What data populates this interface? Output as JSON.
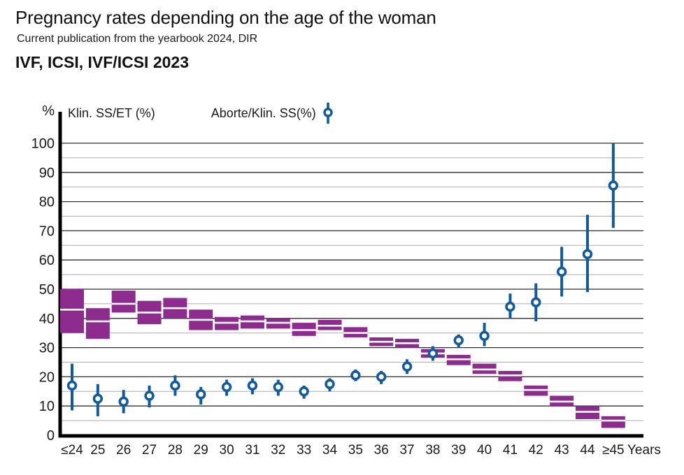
{
  "header": {
    "title": "Pregnancy rates depending on the age of the woman",
    "subtitle": "Current publication from the yearbook 2024, DIR",
    "section_title": "IVF, ICSI, IVF/ICSI 2023"
  },
  "colors": {
    "pregnancy_bar": "#8e2b8e",
    "abortion_marker": "#115a9e",
    "gridline_major": "#2f2f2f",
    "gridline_minor": "#adadad",
    "axis": "#000000",
    "text": "#1a1a1a"
  },
  "chart_data": {
    "type": "bar",
    "subtype": "floating-range-bars-with-mean-line-plus-point-estimates-with-confidence-intervals",
    "title": "IVF, ICSI, IVF/ICSI 2023",
    "xlabel": "Years",
    "ylabel": "%",
    "ylim": [
      0,
      100
    ],
    "ytick_major_step": 10,
    "ytick_minor_step": 5,
    "yticks": [
      0,
      10,
      20,
      30,
      40,
      50,
      60,
      70,
      80,
      90,
      100
    ],
    "grid": "horizontal, minor every 5 (light gray), major every 10 (dark)",
    "legend_position": "top-left above plot",
    "categories": [
      "≤24",
      "25",
      "26",
      "27",
      "28",
      "29",
      "30",
      "31",
      "32",
      "33",
      "34",
      "35",
      "36",
      "37",
      "38",
      "39",
      "40",
      "41",
      "42",
      "43",
      "44",
      "≥45"
    ],
    "series": [
      {
        "name": "Klin. SS/ET (%)",
        "style": "range-bar-with-mean-line",
        "color": "#8e2b8e",
        "low": [
          35,
          33,
          42,
          38,
          40,
          36,
          36,
          36.5,
          36.5,
          34,
          36,
          33.5,
          30.5,
          30,
          26.5,
          24,
          21,
          18.5,
          13.5,
          10,
          5.5,
          2.5
        ],
        "mean": [
          43,
          39,
          45,
          42,
          43.5,
          39.5,
          38.5,
          39,
          38.5,
          36,
          37.5,
          35,
          32,
          31.5,
          28,
          26,
          22.5,
          20.5,
          15.5,
          11.5,
          8,
          5
        ],
        "high": [
          50,
          43.5,
          49.5,
          46,
          47,
          43,
          40.5,
          41,
          40,
          38.5,
          39.5,
          37,
          33.5,
          33,
          29.5,
          27.5,
          24.5,
          22,
          17,
          13.5,
          10,
          6.5
        ]
      },
      {
        "name": "Aborte/Klin. SS(%)",
        "style": "point-with-error-bar",
        "color": "#115a9e",
        "value": [
          17,
          12.5,
          11.5,
          13.5,
          17,
          14,
          16.5,
          17,
          16.5,
          15,
          17.5,
          20.5,
          20,
          23.5,
          28,
          32.5,
          34,
          44,
          45.5,
          56,
          62,
          85.5
        ],
        "ci_low": [
          8.5,
          6.5,
          7.5,
          9.5,
          13.5,
          10.5,
          13.5,
          14,
          13.5,
          12.5,
          15,
          18.5,
          17.5,
          21,
          25.5,
          30,
          30.5,
          40,
          39,
          47.5,
          49,
          71
        ],
        "ci_high": [
          24.5,
          17.5,
          15.5,
          17,
          20.5,
          16.5,
          19,
          19.5,
          19,
          17,
          19.5,
          22.5,
          22,
          26,
          30.5,
          34.5,
          38.5,
          48.5,
          52,
          64.5,
          75.5,
          100
        ]
      }
    ]
  }
}
